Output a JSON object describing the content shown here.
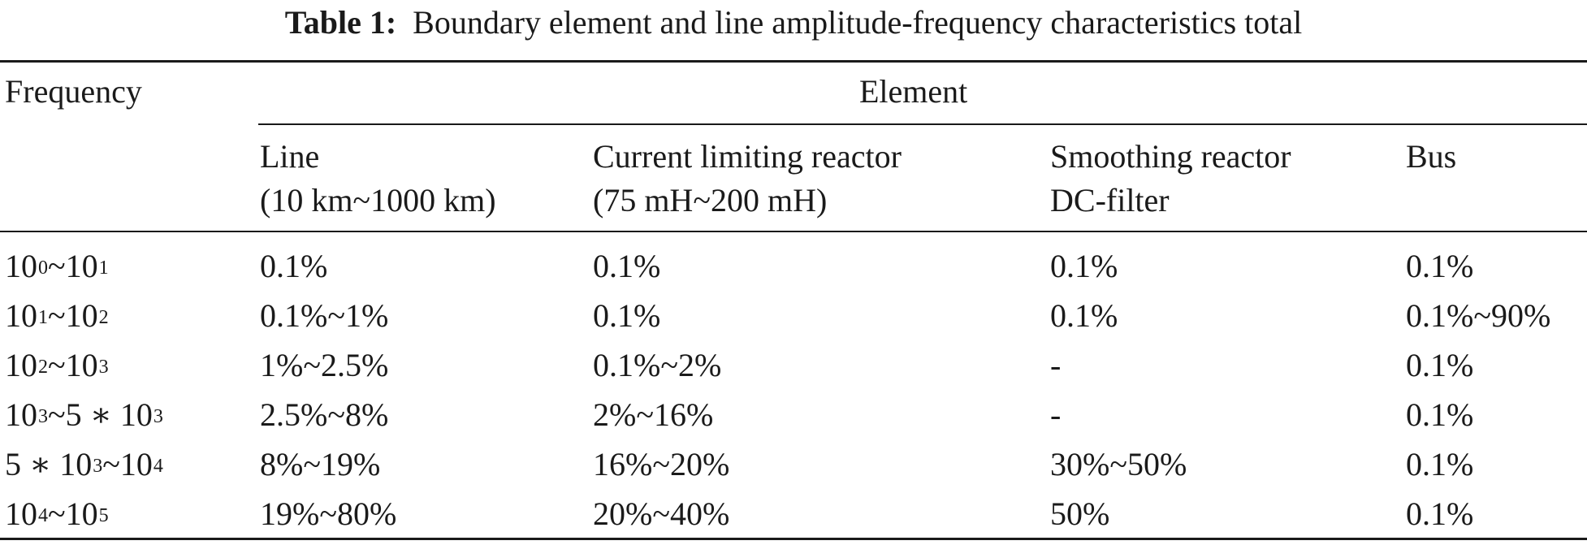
{
  "table": {
    "caption_label": "Table 1:",
    "caption_text": "Boundary element and line amplitude-frequency characteristics total",
    "header": {
      "frequency": "Frequency",
      "element": "Element",
      "line_name": "Line",
      "line_range": "(10 km~1000 km)",
      "reactor_name": "Current limiting reactor",
      "reactor_range": "(75 mH~200 mH)",
      "smoothing_name": "Smoothing reactor",
      "smoothing_sub": "DC-filter",
      "bus": "Bus"
    },
    "rows": [
      {
        "frequency": {
          "a": "10",
          "a_exp": "0",
          "sep": "~",
          "b": "10",
          "b_exp": "1"
        },
        "line": "0.1%",
        "reactor": "0.1%",
        "smoothing": "0.1%",
        "bus": "0.1%"
      },
      {
        "frequency": {
          "a": "10",
          "a_exp": "1",
          "sep": "~",
          "b": "10",
          "b_exp": "2"
        },
        "line": "0.1%~1%",
        "reactor": "0.1%",
        "smoothing": "0.1%",
        "bus": "0.1%~90%"
      },
      {
        "frequency": {
          "a": "10",
          "a_exp": "2",
          "sep": "~",
          "b": "10",
          "b_exp": "3"
        },
        "line": "1%~2.5%",
        "reactor": "0.1%~2%",
        "smoothing": "-",
        "bus": "0.1%"
      },
      {
        "frequency": {
          "a": "10",
          "a_exp": "3",
          "sep": "~5 ∗ ",
          "b": "10",
          "b_exp": "3"
        },
        "line": "2.5%~8%",
        "reactor": "2%~16%",
        "smoothing": "-",
        "bus": "0.1%"
      },
      {
        "frequency": {
          "a": "5 ∗ 10",
          "a_exp": "3",
          "sep": "~",
          "b": "10",
          "b_exp": "4"
        },
        "line": "8%~19%",
        "reactor": "16%~20%",
        "smoothing": "30%~50%",
        "bus": "0.1%"
      },
      {
        "frequency": {
          "a": "10",
          "a_exp": "4",
          "sep": "~",
          "b": "10",
          "b_exp": "5"
        },
        "line": "19%~80%",
        "reactor": "20%~40%",
        "smoothing": "50%",
        "bus": "0.1%"
      }
    ]
  }
}
